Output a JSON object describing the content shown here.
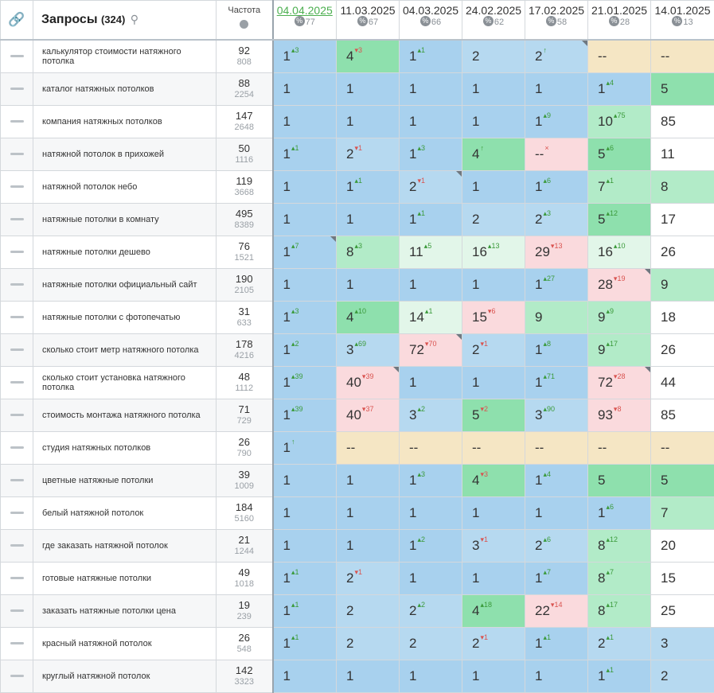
{
  "header": {
    "queries_title": "Запросы",
    "queries_count": "(324)",
    "freq_title": "Частота",
    "dates": [
      {
        "date": "04.04.2025",
        "num": "77"
      },
      {
        "date": "11.03.2025",
        "num": "67"
      },
      {
        "date": "04.03.2025",
        "num": "66"
      },
      {
        "date": "24.02.2025",
        "num": "62"
      },
      {
        "date": "17.02.2025",
        "num": "58"
      },
      {
        "date": "21.01.2025",
        "num": "28"
      },
      {
        "date": "14.01.2025",
        "num": "13"
      }
    ]
  },
  "colors": {
    "top1": "#a8d1ee",
    "top3": "#b6d9f0",
    "top5": "#8ee0ad",
    "top10": "#b2ebc8",
    "top20": "#e2f6e9",
    "top50": "#fadadd",
    "not_found": "#f5e6c4"
  },
  "rows": [
    {
      "query": "калькулятор стоимости натяжного потолка",
      "freq": "92",
      "freq2": "808",
      "cells": [
        {
          "v": "1",
          "d": "3",
          "dir": "up",
          "c": "top1"
        },
        {
          "v": "4",
          "d": "3",
          "dir": "down",
          "c": "top5"
        },
        {
          "v": "1",
          "d": "1",
          "dir": "up",
          "c": "top1"
        },
        {
          "v": "2",
          "d": "",
          "c": "top3"
        },
        {
          "v": "2",
          "d": "↑",
          "dir": "up",
          "c": "top3",
          "corner": true
        },
        {
          "v": "--",
          "d": "",
          "c": "na"
        },
        {
          "v": "--",
          "d": "",
          "c": "na"
        }
      ]
    },
    {
      "query": "каталог натяжных потолков",
      "freq": "88",
      "freq2": "2254",
      "cells": [
        {
          "v": "1",
          "d": "",
          "c": "top1"
        },
        {
          "v": "1",
          "d": "",
          "c": "top1"
        },
        {
          "v": "1",
          "d": "",
          "c": "top1"
        },
        {
          "v": "1",
          "d": "",
          "c": "top1"
        },
        {
          "v": "1",
          "d": "",
          "c": "top1"
        },
        {
          "v": "1",
          "d": "4",
          "dir": "up",
          "c": "top1"
        },
        {
          "v": "5",
          "d": "",
          "c": "top5"
        }
      ]
    },
    {
      "query": "компания натяжных потолков",
      "freq": "147",
      "freq2": "2648",
      "cells": [
        {
          "v": "1",
          "d": "",
          "c": "top1"
        },
        {
          "v": "1",
          "d": "",
          "c": "top1"
        },
        {
          "v": "1",
          "d": "",
          "c": "top1"
        },
        {
          "v": "1",
          "d": "",
          "c": "top1"
        },
        {
          "v": "1",
          "d": "9",
          "dir": "up",
          "c": "top1"
        },
        {
          "v": "10",
          "d": "75",
          "dir": "up",
          "c": "top10"
        },
        {
          "v": "85",
          "d": "",
          "c": "none"
        }
      ]
    },
    {
      "query": "натяжной потолок в прихожей",
      "freq": "50",
      "freq2": "1116",
      "cells": [
        {
          "v": "1",
          "d": "1",
          "dir": "up",
          "c": "top1"
        },
        {
          "v": "2",
          "d": "1",
          "dir": "down",
          "c": "top3"
        },
        {
          "v": "1",
          "d": "3",
          "dir": "up",
          "c": "top1"
        },
        {
          "v": "4",
          "d": "↑",
          "dir": "up",
          "c": "top5"
        },
        {
          "v": "--",
          "d": "×",
          "dir": "down",
          "c": "top50"
        },
        {
          "v": "5",
          "d": "6",
          "dir": "up",
          "c": "top5"
        },
        {
          "v": "11",
          "d": "",
          "c": "none"
        }
      ]
    },
    {
      "query": "натяжной потолок небо",
      "freq": "119",
      "freq2": "3668",
      "cells": [
        {
          "v": "1",
          "d": "",
          "c": "top1"
        },
        {
          "v": "1",
          "d": "1",
          "dir": "up",
          "c": "top1"
        },
        {
          "v": "2",
          "d": "1",
          "dir": "down",
          "c": "top3",
          "corner": true
        },
        {
          "v": "1",
          "d": "",
          "c": "top1"
        },
        {
          "v": "1",
          "d": "6",
          "dir": "up",
          "c": "top1"
        },
        {
          "v": "7",
          "d": "1",
          "dir": "up",
          "c": "top10"
        },
        {
          "v": "8",
          "d": "",
          "c": "top10"
        }
      ]
    },
    {
      "query": "натяжные потолки в комнату",
      "freq": "495",
      "freq2": "8389",
      "cells": [
        {
          "v": "1",
          "d": "",
          "c": "top1"
        },
        {
          "v": "1",
          "d": "",
          "c": "top1"
        },
        {
          "v": "1",
          "d": "1",
          "dir": "up",
          "c": "top1"
        },
        {
          "v": "2",
          "d": "",
          "c": "top3"
        },
        {
          "v": "2",
          "d": "3",
          "dir": "up",
          "c": "top3"
        },
        {
          "v": "5",
          "d": "12",
          "dir": "up",
          "c": "top5"
        },
        {
          "v": "17",
          "d": "",
          "c": "none"
        }
      ]
    },
    {
      "query": "натяжные потолки дешево",
      "freq": "76",
      "freq2": "1521",
      "cells": [
        {
          "v": "1",
          "d": "7",
          "dir": "up",
          "c": "top1",
          "corner": true
        },
        {
          "v": "8",
          "d": "3",
          "dir": "up",
          "c": "top10"
        },
        {
          "v": "11",
          "d": "5",
          "dir": "up",
          "c": "top20"
        },
        {
          "v": "16",
          "d": "13",
          "dir": "up",
          "c": "top20"
        },
        {
          "v": "29",
          "d": "13",
          "dir": "down",
          "c": "top50"
        },
        {
          "v": "16",
          "d": "10",
          "dir": "up",
          "c": "top20"
        },
        {
          "v": "26",
          "d": "",
          "c": "none"
        }
      ]
    },
    {
      "query": "натяжные потолки официальный сайт",
      "freq": "190",
      "freq2": "2105",
      "cells": [
        {
          "v": "1",
          "d": "",
          "c": "top1"
        },
        {
          "v": "1",
          "d": "",
          "c": "top1"
        },
        {
          "v": "1",
          "d": "",
          "c": "top1"
        },
        {
          "v": "1",
          "d": "",
          "c": "top1"
        },
        {
          "v": "1",
          "d": "27",
          "dir": "up",
          "c": "top1"
        },
        {
          "v": "28",
          "d": "19",
          "dir": "down",
          "c": "top50",
          "corner": true
        },
        {
          "v": "9",
          "d": "",
          "c": "top10"
        }
      ]
    },
    {
      "query": "натяжные потолки с фотопечатью",
      "freq": "31",
      "freq2": "633",
      "cells": [
        {
          "v": "1",
          "d": "3",
          "dir": "up",
          "c": "top1"
        },
        {
          "v": "4",
          "d": "10",
          "dir": "up",
          "c": "top5"
        },
        {
          "v": "14",
          "d": "1",
          "dir": "up",
          "c": "top20"
        },
        {
          "v": "15",
          "d": "6",
          "dir": "down",
          "c": "top50"
        },
        {
          "v": "9",
          "d": "",
          "c": "top10"
        },
        {
          "v": "9",
          "d": "9",
          "dir": "up",
          "c": "top10"
        },
        {
          "v": "18",
          "d": "",
          "c": "none"
        }
      ]
    },
    {
      "query": "сколько стоит метр натяжного потолка",
      "freq": "178",
      "freq2": "4216",
      "cells": [
        {
          "v": "1",
          "d": "2",
          "dir": "up",
          "c": "top1"
        },
        {
          "v": "3",
          "d": "69",
          "dir": "up",
          "c": "top3"
        },
        {
          "v": "72",
          "d": "70",
          "dir": "down",
          "c": "top50",
          "corner": true
        },
        {
          "v": "2",
          "d": "1",
          "dir": "down",
          "c": "top3"
        },
        {
          "v": "1",
          "d": "8",
          "dir": "up",
          "c": "top1"
        },
        {
          "v": "9",
          "d": "17",
          "dir": "up",
          "c": "top10"
        },
        {
          "v": "26",
          "d": "",
          "c": "none"
        }
      ]
    },
    {
      "query": "сколько стоит установка натяжного потолка",
      "freq": "48",
      "freq2": "1112",
      "cells": [
        {
          "v": "1",
          "d": "39",
          "dir": "up",
          "c": "top1"
        },
        {
          "v": "40",
          "d": "39",
          "dir": "down",
          "c": "top50",
          "corner": true
        },
        {
          "v": "1",
          "d": "",
          "c": "top1"
        },
        {
          "v": "1",
          "d": "",
          "c": "top1"
        },
        {
          "v": "1",
          "d": "71",
          "dir": "up",
          "c": "top1"
        },
        {
          "v": "72",
          "d": "28",
          "dir": "down",
          "c": "top50",
          "corner": true
        },
        {
          "v": "44",
          "d": "",
          "c": "none"
        }
      ]
    },
    {
      "query": "стоимость монтажа натяжного потолка",
      "freq": "71",
      "freq2": "729",
      "cells": [
        {
          "v": "1",
          "d": "39",
          "dir": "up",
          "c": "top1"
        },
        {
          "v": "40",
          "d": "37",
          "dir": "down",
          "c": "top50"
        },
        {
          "v": "3",
          "d": "2",
          "dir": "up",
          "c": "top3"
        },
        {
          "v": "5",
          "d": "2",
          "dir": "down",
          "c": "top5"
        },
        {
          "v": "3",
          "d": "90",
          "dir": "up",
          "c": "top3"
        },
        {
          "v": "93",
          "d": "8",
          "dir": "down",
          "c": "top50"
        },
        {
          "v": "85",
          "d": "",
          "c": "none"
        }
      ]
    },
    {
      "query": "студия натяжных потолков",
      "freq": "26",
      "freq2": "790",
      "cells": [
        {
          "v": "1",
          "d": "↑",
          "dir": "up",
          "c": "top1"
        },
        {
          "v": "--",
          "d": "",
          "c": "na"
        },
        {
          "v": "--",
          "d": "",
          "c": "na"
        },
        {
          "v": "--",
          "d": "",
          "c": "na"
        },
        {
          "v": "--",
          "d": "",
          "c": "na"
        },
        {
          "v": "--",
          "d": "",
          "c": "na"
        },
        {
          "v": "--",
          "d": "",
          "c": "na"
        }
      ]
    },
    {
      "query": "цветные натяжные потолки",
      "freq": "39",
      "freq2": "1009",
      "cells": [
        {
          "v": "1",
          "d": "",
          "c": "top1"
        },
        {
          "v": "1",
          "d": "",
          "c": "top1"
        },
        {
          "v": "1",
          "d": "3",
          "dir": "up",
          "c": "top1"
        },
        {
          "v": "4",
          "d": "3",
          "dir": "down",
          "c": "top5"
        },
        {
          "v": "1",
          "d": "4",
          "dir": "up",
          "c": "top1"
        },
        {
          "v": "5",
          "d": "",
          "c": "top5"
        },
        {
          "v": "5",
          "d": "",
          "c": "top5"
        }
      ]
    },
    {
      "query": "белый натяжной потолок",
      "freq": "184",
      "freq2": "5160",
      "cells": [
        {
          "v": "1",
          "d": "",
          "c": "top1"
        },
        {
          "v": "1",
          "d": "",
          "c": "top1"
        },
        {
          "v": "1",
          "d": "",
          "c": "top1"
        },
        {
          "v": "1",
          "d": "",
          "c": "top1"
        },
        {
          "v": "1",
          "d": "",
          "c": "top1"
        },
        {
          "v": "1",
          "d": "6",
          "dir": "up",
          "c": "top1"
        },
        {
          "v": "7",
          "d": "",
          "c": "top10"
        }
      ]
    },
    {
      "query": "где заказать натяжной потолок",
      "freq": "21",
      "freq2": "1244",
      "cells": [
        {
          "v": "1",
          "d": "",
          "c": "top1"
        },
        {
          "v": "1",
          "d": "",
          "c": "top1"
        },
        {
          "v": "1",
          "d": "2",
          "dir": "up",
          "c": "top1"
        },
        {
          "v": "3",
          "d": "1",
          "dir": "down",
          "c": "top3"
        },
        {
          "v": "2",
          "d": "6",
          "dir": "up",
          "c": "top3"
        },
        {
          "v": "8",
          "d": "12",
          "dir": "up",
          "c": "top10"
        },
        {
          "v": "20",
          "d": "",
          "c": "none"
        }
      ]
    },
    {
      "query": "готовые натяжные потолки",
      "freq": "49",
      "freq2": "1018",
      "cells": [
        {
          "v": "1",
          "d": "1",
          "dir": "up",
          "c": "top1"
        },
        {
          "v": "2",
          "d": "1",
          "dir": "down",
          "c": "top3"
        },
        {
          "v": "1",
          "d": "",
          "c": "top1"
        },
        {
          "v": "1",
          "d": "",
          "c": "top1"
        },
        {
          "v": "1",
          "d": "7",
          "dir": "up",
          "c": "top1"
        },
        {
          "v": "8",
          "d": "7",
          "dir": "up",
          "c": "top10"
        },
        {
          "v": "15",
          "d": "",
          "c": "none"
        }
      ]
    },
    {
      "query": "заказать натяжные потолки цена",
      "freq": "19",
      "freq2": "239",
      "cells": [
        {
          "v": "1",
          "d": "1",
          "dir": "up",
          "c": "top1"
        },
        {
          "v": "2",
          "d": "",
          "c": "top3"
        },
        {
          "v": "2",
          "d": "2",
          "dir": "up",
          "c": "top3"
        },
        {
          "v": "4",
          "d": "18",
          "dir": "up",
          "c": "top5"
        },
        {
          "v": "22",
          "d": "14",
          "dir": "down",
          "c": "top50"
        },
        {
          "v": "8",
          "d": "17",
          "dir": "up",
          "c": "top10"
        },
        {
          "v": "25",
          "d": "",
          "c": "none"
        }
      ]
    },
    {
      "query": "красный натяжной потолок",
      "freq": "26",
      "freq2": "548",
      "cells": [
        {
          "v": "1",
          "d": "1",
          "dir": "up",
          "c": "top1"
        },
        {
          "v": "2",
          "d": "",
          "c": "top3"
        },
        {
          "v": "2",
          "d": "",
          "c": "top3"
        },
        {
          "v": "2",
          "d": "1",
          "dir": "down",
          "c": "top3"
        },
        {
          "v": "1",
          "d": "1",
          "dir": "up",
          "c": "top1"
        },
        {
          "v": "2",
          "d": "1",
          "dir": "up",
          "c": "top3"
        },
        {
          "v": "3",
          "d": "",
          "c": "top3"
        }
      ]
    },
    {
      "query": "круглый натяжной потолок",
      "freq": "142",
      "freq2": "3323",
      "cells": [
        {
          "v": "1",
          "d": "",
          "c": "top1"
        },
        {
          "v": "1",
          "d": "",
          "c": "top1"
        },
        {
          "v": "1",
          "d": "",
          "c": "top1"
        },
        {
          "v": "1",
          "d": "",
          "c": "top1"
        },
        {
          "v": "1",
          "d": "",
          "c": "top1"
        },
        {
          "v": "1",
          "d": "1",
          "dir": "up",
          "c": "top1"
        },
        {
          "v": "2",
          "d": "",
          "c": "top3"
        }
      ]
    }
  ]
}
